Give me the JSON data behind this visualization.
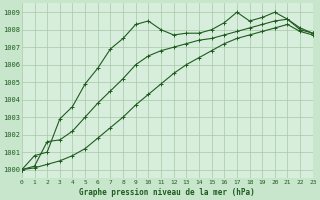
{
  "title": "Graphe pression niveau de la mer (hPa)",
  "background_color": "#c8e6cc",
  "plot_bg_color": "#d8eedc",
  "line_color": "#1e5c1e",
  "grid_color": "#a8c8a8",
  "xlim": [
    0,
    23
  ],
  "ylim": [
    999.5,
    1009.5
  ],
  "yticks": [
    1000,
    1001,
    1002,
    1003,
    1004,
    1005,
    1006,
    1007,
    1008,
    1009
  ],
  "xticks": [
    0,
    1,
    2,
    3,
    4,
    5,
    6,
    7,
    8,
    9,
    10,
    11,
    12,
    13,
    14,
    15,
    16,
    17,
    18,
    19,
    20,
    21,
    22,
    23
  ],
  "series1_x": [
    0,
    1,
    2,
    3,
    4,
    5,
    6,
    7,
    8,
    9,
    10,
    11,
    12,
    13,
    14,
    15,
    16,
    17,
    18,
    19,
    20,
    21,
    22,
    23
  ],
  "series1_y": [
    1000.0,
    1000.8,
    1001.0,
    1002.9,
    1003.6,
    1004.9,
    1005.8,
    1006.9,
    1007.5,
    1008.3,
    1008.5,
    1008.0,
    1007.7,
    1007.8,
    1007.8,
    1008.0,
    1008.4,
    1009.0,
    1008.5,
    1008.7,
    1009.0,
    1008.6,
    1008.1,
    1007.8
  ],
  "series2_x": [
    0,
    1,
    2,
    3,
    4,
    5,
    6,
    7,
    8,
    9,
    10,
    11,
    12,
    13,
    14,
    15,
    16,
    17,
    18,
    19,
    20,
    21,
    22,
    23
  ],
  "series2_y": [
    1000.0,
    1000.2,
    1001.6,
    1001.7,
    1002.2,
    1003.0,
    1003.8,
    1004.5,
    1005.2,
    1006.0,
    1006.5,
    1006.8,
    1007.0,
    1007.2,
    1007.4,
    1007.5,
    1007.7,
    1007.9,
    1008.1,
    1008.3,
    1008.5,
    1008.6,
    1008.0,
    1007.8
  ],
  "series3_x": [
    0,
    1,
    2,
    3,
    4,
    5,
    6,
    7,
    8,
    9,
    10,
    11,
    12,
    13,
    14,
    15,
    16,
    17,
    18,
    19,
    20,
    21,
    22,
    23
  ],
  "series3_y": [
    1000.0,
    1000.1,
    1000.3,
    1000.5,
    1000.8,
    1001.2,
    1001.8,
    1002.4,
    1003.0,
    1003.7,
    1004.3,
    1004.9,
    1005.5,
    1006.0,
    1006.4,
    1006.8,
    1007.2,
    1007.5,
    1007.7,
    1007.9,
    1008.1,
    1008.3,
    1007.9,
    1007.7
  ]
}
